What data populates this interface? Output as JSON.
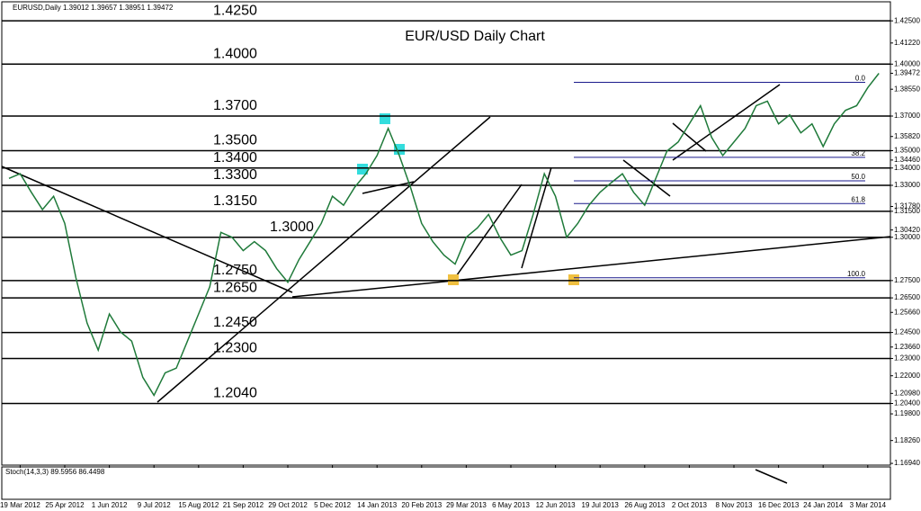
{
  "chart_data": {
    "type": "line",
    "header": "EURUSD,Daily  1.39012 1.39657 1.38951 1.39472",
    "title": "EUR/USD Daily Chart",
    "categories": [
      null,
      "19 Mar 2012",
      null,
      null,
      null,
      "25 Apr 2012",
      null,
      null,
      null,
      "1 Jun 2012",
      null,
      null,
      null,
      "9 Jul 2012",
      null,
      null,
      null,
      "15 Aug 2012",
      null,
      null,
      null,
      "21 Sep 2012",
      null,
      null,
      null,
      "29 Oct 2012",
      null,
      null,
      null,
      "5 Dec 2012",
      null,
      null,
      null,
      "14 Jan 2013",
      null,
      null,
      null,
      "20 Feb 2013",
      null,
      null,
      null,
      "29 Mar 2013",
      null,
      null,
      null,
      "6 May 2013",
      null,
      null,
      null,
      "12 Jun 2013",
      null,
      null,
      null,
      "19 Jul 2013",
      null,
      null,
      null,
      "26 Aug 2013",
      null,
      null,
      null,
      "2 Oct 2013",
      null,
      null,
      null,
      "8 Nov 2013",
      null,
      null,
      null,
      "16 Dec 2013",
      null,
      null,
      null,
      "24 Jan 2014",
      null,
      null,
      null,
      "3 Mar 2014",
      null
    ],
    "series": [
      {
        "name": "EURUSD",
        "color": "#1f7a3a",
        "values": [
          1.334,
          1.3367,
          1.326,
          1.316,
          1.3237,
          1.308,
          1.2766,
          1.2505,
          1.2348,
          1.2557,
          1.2453,
          1.24,
          1.2191,
          1.2087,
          1.2217,
          1.2244,
          1.24,
          1.2557,
          1.2714,
          1.3028,
          1.3,
          1.2923,
          1.2975,
          1.2923,
          1.2819,
          1.274,
          1.2871,
          1.2975,
          1.308,
          1.3237,
          1.3185,
          1.3289,
          1.3367,
          1.3472,
          1.3629,
          1.3472,
          1.3289,
          1.308,
          1.2975,
          1.2897,
          1.2845,
          1.3,
          1.3054,
          1.3132,
          1.3,
          1.2897,
          1.2923,
          1.3132,
          1.3367,
          1.3237,
          1.3,
          1.308,
          1.3185,
          1.326,
          1.3315,
          1.3367,
          1.326,
          1.3185,
          1.3341,
          1.3498,
          1.355,
          1.3655,
          1.376,
          1.3577,
          1.3472,
          1.355,
          1.3629,
          1.376,
          1.3786,
          1.3655,
          1.3707,
          1.3603,
          1.3655,
          1.3524,
          1.3655,
          1.3733,
          1.376,
          1.3864,
          1.3947
        ]
      }
    ],
    "ylim": [
      1.1684,
      1.436
    ],
    "yticks": [
      {
        "value": 1.425,
        "label": "1.42500"
      },
      {
        "value": 1.4122,
        "label": "1.41220"
      },
      {
        "value": 1.4,
        "label": "1.40000"
      },
      {
        "value": 1.39472,
        "label": "1.39472"
      },
      {
        "value": 1.3855,
        "label": "1.38550"
      },
      {
        "value": 1.37,
        "label": "1.37000"
      },
      {
        "value": 1.3582,
        "label": "1.35820"
      },
      {
        "value": 1.35,
        "label": "1.35000"
      },
      {
        "value": 1.3446,
        "label": "1.34460"
      },
      {
        "value": 1.34,
        "label": "1.34000"
      },
      {
        "value": 1.33,
        "label": "1.33000"
      },
      {
        "value": 1.3178,
        "label": "1.31780"
      },
      {
        "value": 1.315,
        "label": "1.31500"
      },
      {
        "value": 1.3042,
        "label": "1.30420"
      },
      {
        "value": 1.3,
        "label": "1.30000"
      },
      {
        "value": 1.275,
        "label": "1.27500"
      },
      {
        "value": 1.265,
        "label": "1.26500"
      },
      {
        "value": 1.2566,
        "label": "1.25660"
      },
      {
        "value": 1.245,
        "label": "1.24500"
      },
      {
        "value": 1.2366,
        "label": "1.23660"
      },
      {
        "value": 1.23,
        "label": "1.23000"
      },
      {
        "value": 1.22,
        "label": "1.22000"
      },
      {
        "value": 1.2098,
        "label": "1.20980"
      },
      {
        "value": 1.204,
        "label": "1.20400"
      },
      {
        "value": 1.198,
        "label": "1.19800"
      },
      {
        "value": 1.1826,
        "label": "1.18260"
      },
      {
        "value": 1.1694,
        "label": "1.16940"
      }
    ],
    "levels": [
      {
        "value": 1.425,
        "label": "1.4250"
      },
      {
        "value": 1.4,
        "label": "1.4000"
      },
      {
        "value": 1.37,
        "label": "1.3700"
      },
      {
        "value": 1.35,
        "label": "1.3500"
      },
      {
        "value": 1.34,
        "label": "1.3400"
      },
      {
        "value": 1.33,
        "label": "1.3300"
      },
      {
        "value": 1.315,
        "label": "1.3150"
      },
      {
        "value": 1.3,
        "label": "1.3000"
      },
      {
        "value": 1.275,
        "label": "1.2750"
      },
      {
        "value": 1.265,
        "label": "1.2650"
      },
      {
        "value": 1.245,
        "label": "1.2450"
      },
      {
        "value": 1.23,
        "label": "1.2300"
      },
      {
        "value": 1.204,
        "label": "1.2040"
      }
    ],
    "fibonacci": [
      {
        "value": 1.3895,
        "label": "0.0"
      },
      {
        "value": 1.3462,
        "label": "38.2"
      },
      {
        "value": 1.3326,
        "label": "50.0"
      },
      {
        "value": 1.3195,
        "label": "61.8"
      },
      {
        "value": 1.2766,
        "label": "100.0"
      }
    ],
    "stochastic_label": "Stoch(14,3,3) 89.5956 86.4498"
  }
}
